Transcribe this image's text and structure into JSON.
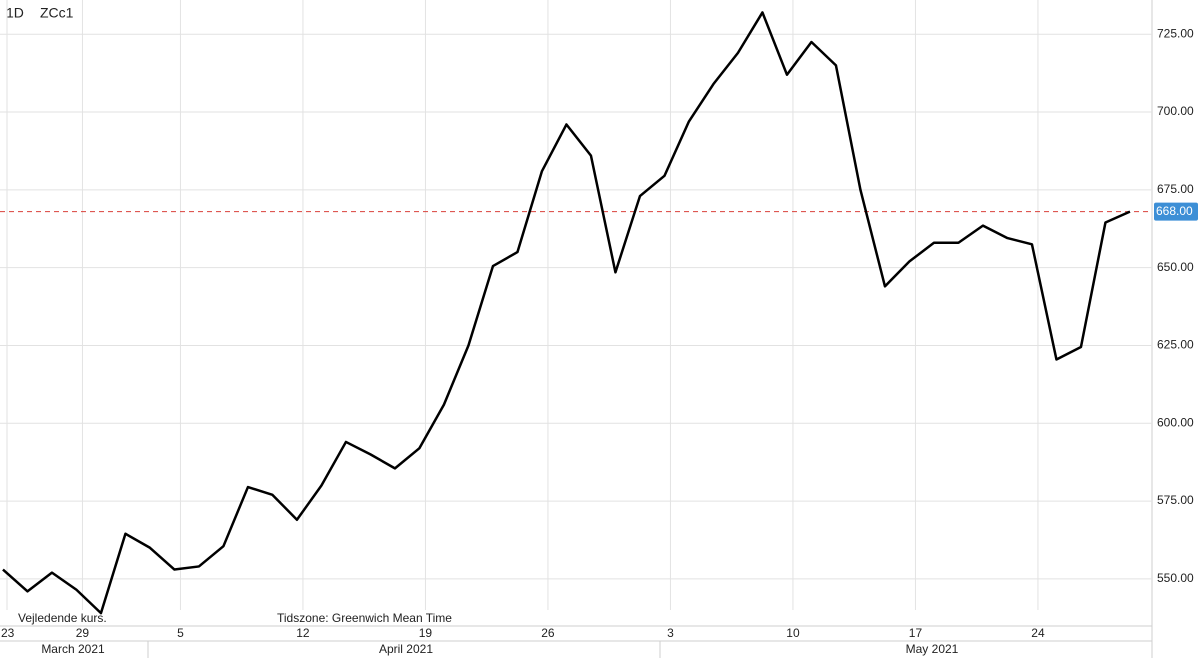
{
  "chart_data": {
    "type": "line",
    "interval": "1D",
    "symbol": "ZCc1",
    "note_left": "Vejledende kurs.",
    "note_center": "Tidszone: Greenwich Mean Time",
    "months": [
      "March 2021",
      "April 2021",
      "May 2021"
    ],
    "series": [
      {
        "name": "ZCc1",
        "color": "#000000",
        "values": [
          553,
          546,
          552,
          546.5,
          539,
          564.5,
          560,
          553,
          554,
          560.5,
          579.5,
          577,
          569,
          580,
          594,
          590,
          585.5,
          592,
          606,
          625,
          650.5,
          655,
          681,
          696,
          686,
          648.5,
          673,
          679.5,
          697,
          709,
          719,
          732,
          712,
          722.5,
          715,
          675,
          644,
          652,
          658,
          658,
          663.5,
          659.5,
          657.5,
          620.5,
          624.5,
          664.5,
          668
        ]
      }
    ],
    "xlim": [
      -0.12,
      46.9
    ],
    "xticks": [
      {
        "value": -1,
        "label": "23"
      },
      {
        "value": 3,
        "label": "29"
      },
      {
        "value": 7,
        "label": "5"
      },
      {
        "value": 12,
        "label": "12"
      },
      {
        "value": 17,
        "label": "19"
      },
      {
        "value": 22,
        "label": "26"
      },
      {
        "value": 27,
        "label": "3"
      },
      {
        "value": 32,
        "label": "10"
      },
      {
        "value": 37,
        "label": "17"
      },
      {
        "value": 42,
        "label": "24"
      }
    ],
    "ylim": [
      540,
      736
    ],
    "yticks": [
      {
        "value": 550,
        "label": "550.00"
      },
      {
        "value": 575,
        "label": "575.00"
      },
      {
        "value": 600,
        "label": "600.00"
      },
      {
        "value": 625,
        "label": "625.00"
      },
      {
        "value": 650,
        "label": "650.00"
      },
      {
        "value": 675,
        "label": "675.00"
      },
      {
        "value": 700,
        "label": "700.00"
      },
      {
        "value": 725,
        "label": "725.00"
      }
    ],
    "last_price": {
      "value": 668,
      "label": "668.00",
      "color": "#3d8fd6",
      "line_color": "#d9403a"
    },
    "grid": true
  }
}
